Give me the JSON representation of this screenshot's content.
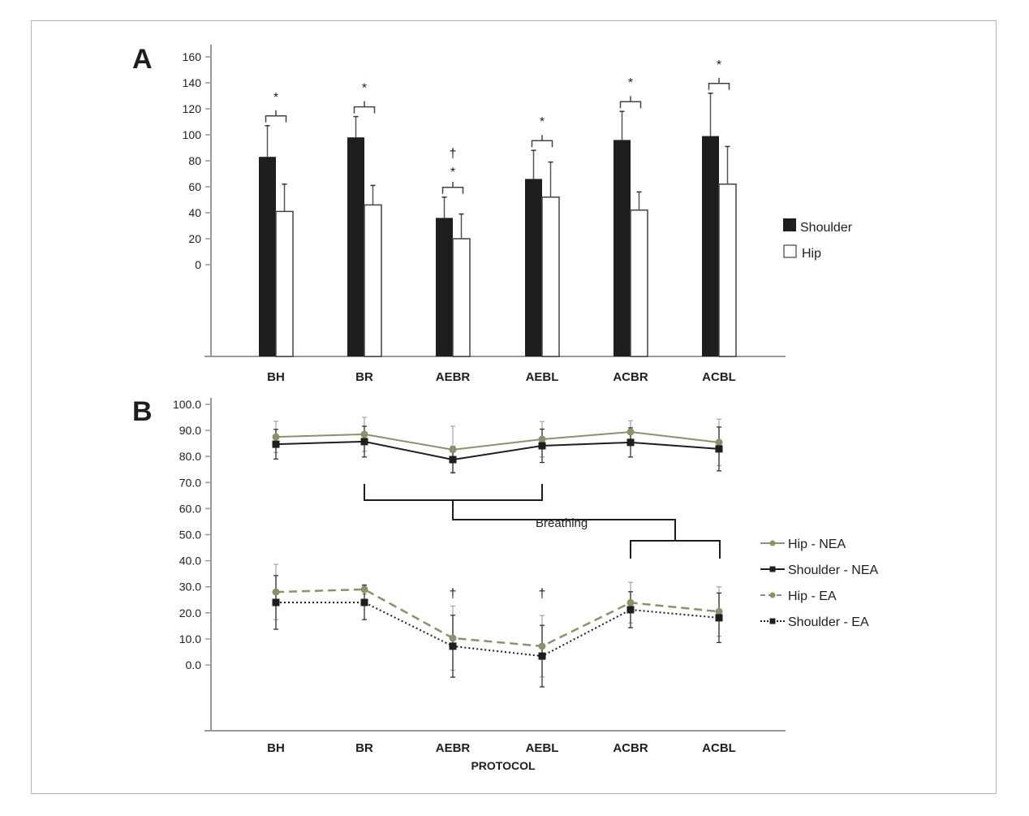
{
  "chart_data": [
    {
      "panel": "A",
      "type": "bar",
      "title": "",
      "xlabel": "",
      "ylabel": "",
      "ylim": [
        0,
        160
      ],
      "yticks": [
        0,
        20,
        40,
        60,
        80,
        100,
        120,
        140,
        160
      ],
      "categories": [
        "BH",
        "BR",
        "AEBR",
        "AEBL",
        "ACBR",
        "ACBL"
      ],
      "series": [
        {
          "name": "Shoulder",
          "color": "#1e1e1e",
          "values": [
            83,
            98,
            36,
            66,
            96,
            99
          ],
          "error_upper": [
            107,
            114,
            52,
            88,
            118,
            132
          ]
        },
        {
          "name": "Hip",
          "color": "#ffffff",
          "values": [
            41,
            46,
            20,
            52,
            42,
            62
          ],
          "error_upper": [
            62,
            61,
            39,
            79,
            56,
            91
          ]
        }
      ],
      "significance": [
        {
          "category": "BH",
          "marks": "*"
        },
        {
          "category": "BR",
          "marks": "*"
        },
        {
          "category": "AEBR",
          "marks": "† *"
        },
        {
          "category": "AEBL",
          "marks": "*"
        },
        {
          "category": "ACBR",
          "marks": "*"
        },
        {
          "category": "ACBL",
          "marks": "*"
        }
      ],
      "legend": {
        "placement": "right",
        "entries": [
          "Shoulder",
          "Hip"
        ]
      }
    },
    {
      "panel": "B",
      "type": "line",
      "title": "",
      "xlabel": "PROTOCOL",
      "ylabel": "",
      "ylim": [
        0,
        100
      ],
      "yticks": [
        "0.0",
        "10.0",
        "20.0",
        "30.0",
        "40.0",
        "50.0",
        "60.0",
        "70.0",
        "80.0",
        "90.0",
        "100.0"
      ],
      "categories": [
        "BH",
        "BR",
        "AEBR",
        "AEBL",
        "ACBR",
        "ACBL"
      ],
      "series": [
        {
          "name": "Hip - NEA",
          "color": "#8c9168",
          "style": "solid",
          "marker": "circle",
          "values": [
            87.5,
            88.5,
            82.6,
            86.6,
            89.4,
            85.4
          ],
          "error": [
            6.0,
            6.5,
            9.0,
            6.8,
            4.3,
            8.9
          ]
        },
        {
          "name": "Shoulder - NEA",
          "color": "#1e1e1e",
          "style": "solid",
          "marker": "square",
          "values": [
            84.7,
            85.7,
            78.8,
            84.1,
            85.4,
            82.9
          ],
          "error": [
            5.7,
            5.9,
            5.0,
            6.4,
            5.6,
            8.4
          ]
        },
        {
          "name": "Hip - EA",
          "color": "#8c9168",
          "style": "dashed",
          "marker": "circle",
          "values": [
            28.0,
            29.0,
            10.3,
            7.2,
            23.9,
            20.5
          ],
          "error": [
            10.6,
            1.8,
            12.3,
            11.8,
            7.8,
            9.5
          ]
        },
        {
          "name": "Shoulder - EA",
          "color": "#1e1e1e",
          "style": "dotted",
          "marker": "square",
          "values": [
            24.0,
            24.0,
            7.2,
            3.4,
            21.2,
            18.1
          ],
          "error": [
            10.3,
            6.6,
            11.9,
            11.8,
            6.9,
            9.5
          ]
        }
      ],
      "significance": [
        {
          "category": "AEBR",
          "marks": "†"
        },
        {
          "category": "AEBL",
          "marks": "†"
        }
      ],
      "bracket_annotation": "Breathing",
      "legend": {
        "placement": "right",
        "entries": [
          "Hip - NEA",
          "Shoulder - NEA",
          "Hip - EA",
          "Shoulder - EA"
        ]
      }
    }
  ],
  "labels": {
    "panel_a": "A",
    "panel_b": "B"
  }
}
